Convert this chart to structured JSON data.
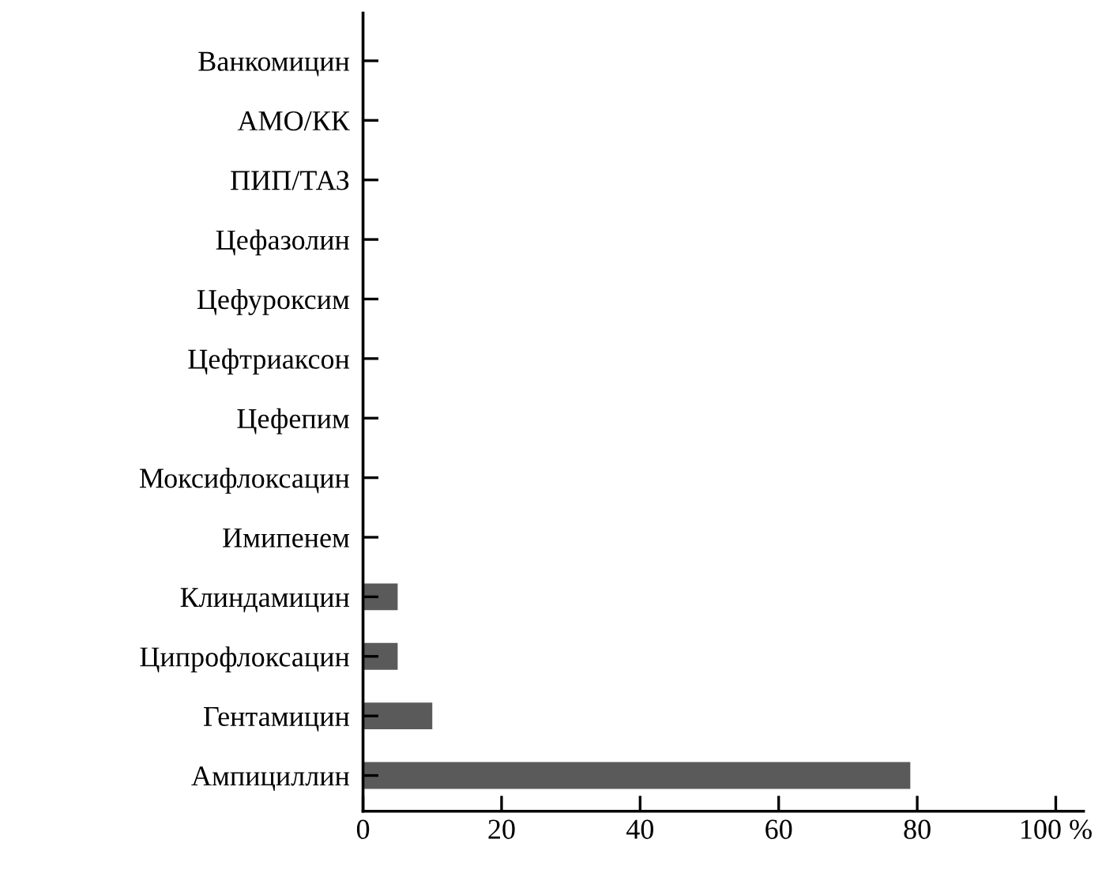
{
  "chart_data": {
    "type": "bar",
    "orientation": "horizontal",
    "categories": [
      "Ванкомицин",
      "АМО/КК",
      "ПИП/ТАЗ",
      "Цефазолин",
      "Цефуроксим",
      "Цефтриаксон",
      "Цефепим",
      "Моксифлоксацин",
      "Имипенем",
      "Клиндамицин",
      "Ципрофлоксацин",
      "Гентамицин",
      "Ампициллин"
    ],
    "values": [
      0,
      0,
      0,
      0,
      0,
      0,
      0,
      0,
      0,
      5,
      5,
      10,
      79
    ],
    "color": "#5a5a5a",
    "xlim": [
      0,
      104
    ],
    "xticks": [
      0,
      20,
      40,
      60,
      80,
      {
        "value": 100,
        "label": "100 %"
      }
    ],
    "grid": false,
    "legend": false
  }
}
